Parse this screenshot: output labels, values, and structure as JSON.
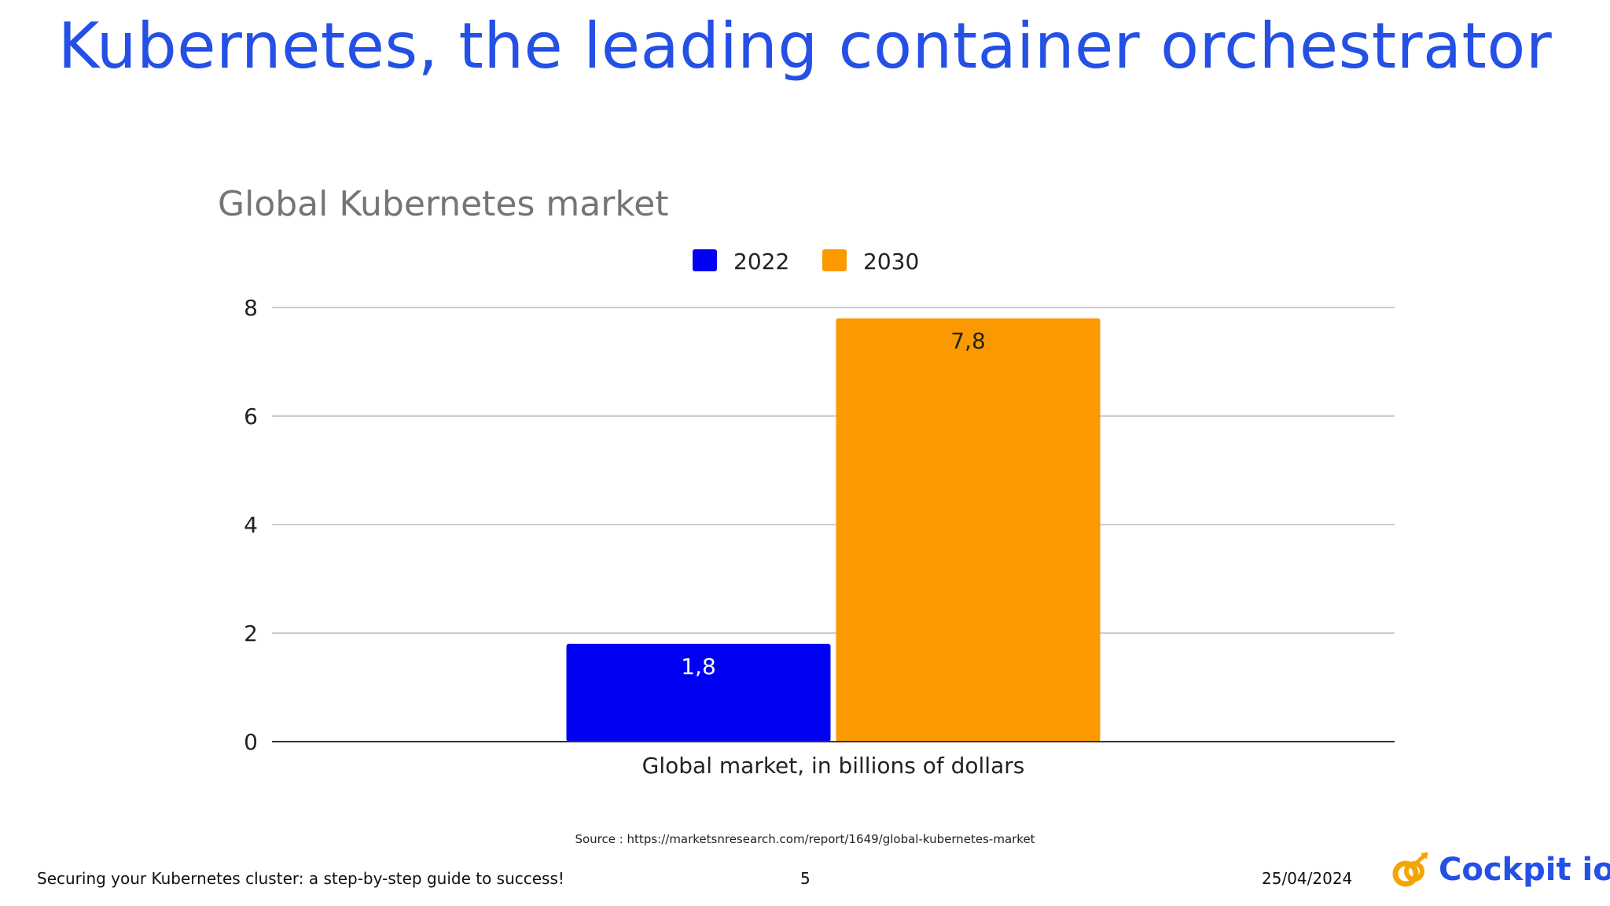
{
  "slide": {
    "title": "Kubernetes, the leading container orchestrator",
    "source": "Source : https://marketsnresearch.com/report/1649/global-kubernetes-market",
    "footer_left": "Securing your Kubernetes cluster: a step-by-step guide to success!",
    "page_number": "5",
    "date": "25/04/2024",
    "logo_text": "Cockpit io"
  },
  "colors": {
    "title": "#2450e6",
    "series_2022": "#0000f2",
    "series_2030": "#fa9a00",
    "grid": "#cccccc",
    "axis": "#333333"
  },
  "chart_data": {
    "type": "bar",
    "title": "Global Kubernetes market",
    "categories": [
      "Global market, in billions of dollars"
    ],
    "series": [
      {
        "name": "2022",
        "values": [
          1.8
        ],
        "label": "1,8",
        "color": "#0000f2"
      },
      {
        "name": "2030",
        "values": [
          7.8
        ],
        "label": "7,8",
        "color": "#fa9a00"
      }
    ],
    "ylim": [
      0,
      8
    ],
    "yticks": [
      "0",
      "2",
      "4",
      "6",
      "8"
    ],
    "grid": true,
    "legend": "top"
  }
}
